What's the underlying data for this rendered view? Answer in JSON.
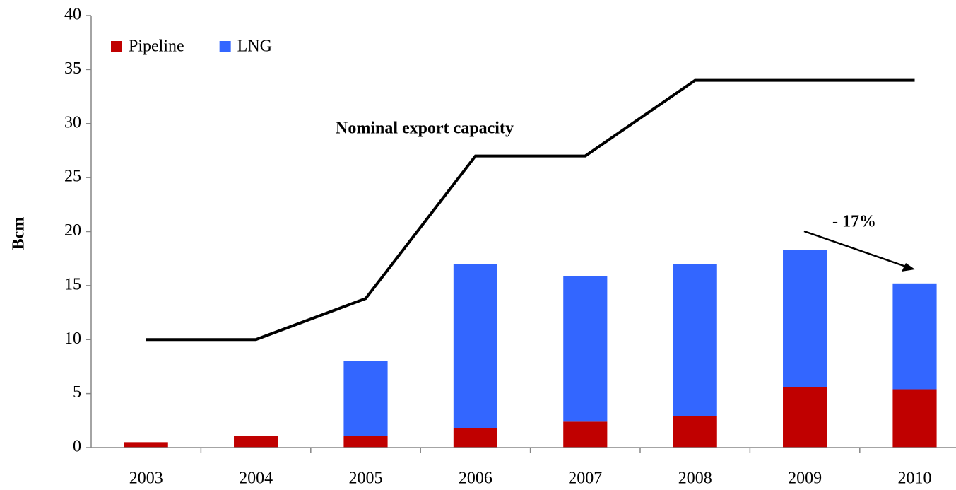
{
  "chart_data": {
    "type": "bar",
    "stacked": true,
    "categories": [
      "2003",
      "2004",
      "2005",
      "2006",
      "2007",
      "2008",
      "2009",
      "2010"
    ],
    "series": [
      {
        "name": "Pipeline",
        "color": "#c00000",
        "values": [
          0.5,
          1.1,
          1.1,
          1.8,
          2.4,
          2.9,
          5.6,
          5.4
        ]
      },
      {
        "name": "LNG",
        "color": "#3366ff",
        "values": [
          0,
          0,
          6.9,
          15.2,
          13.5,
          14.1,
          12.7,
          9.8
        ]
      }
    ],
    "line": {
      "color": "#000000",
      "values": [
        10,
        10,
        13.8,
        27,
        27,
        34,
        34,
        34
      ]
    },
    "ylabel": "Bcm",
    "annotations": [
      "Nominal  export capacity",
      "- 17%"
    ],
    "ylim": [
      0,
      40
    ],
    "yticks": [
      0,
      5,
      10,
      15,
      20,
      25,
      30,
      35,
      40
    ],
    "legend": "top-left"
  }
}
